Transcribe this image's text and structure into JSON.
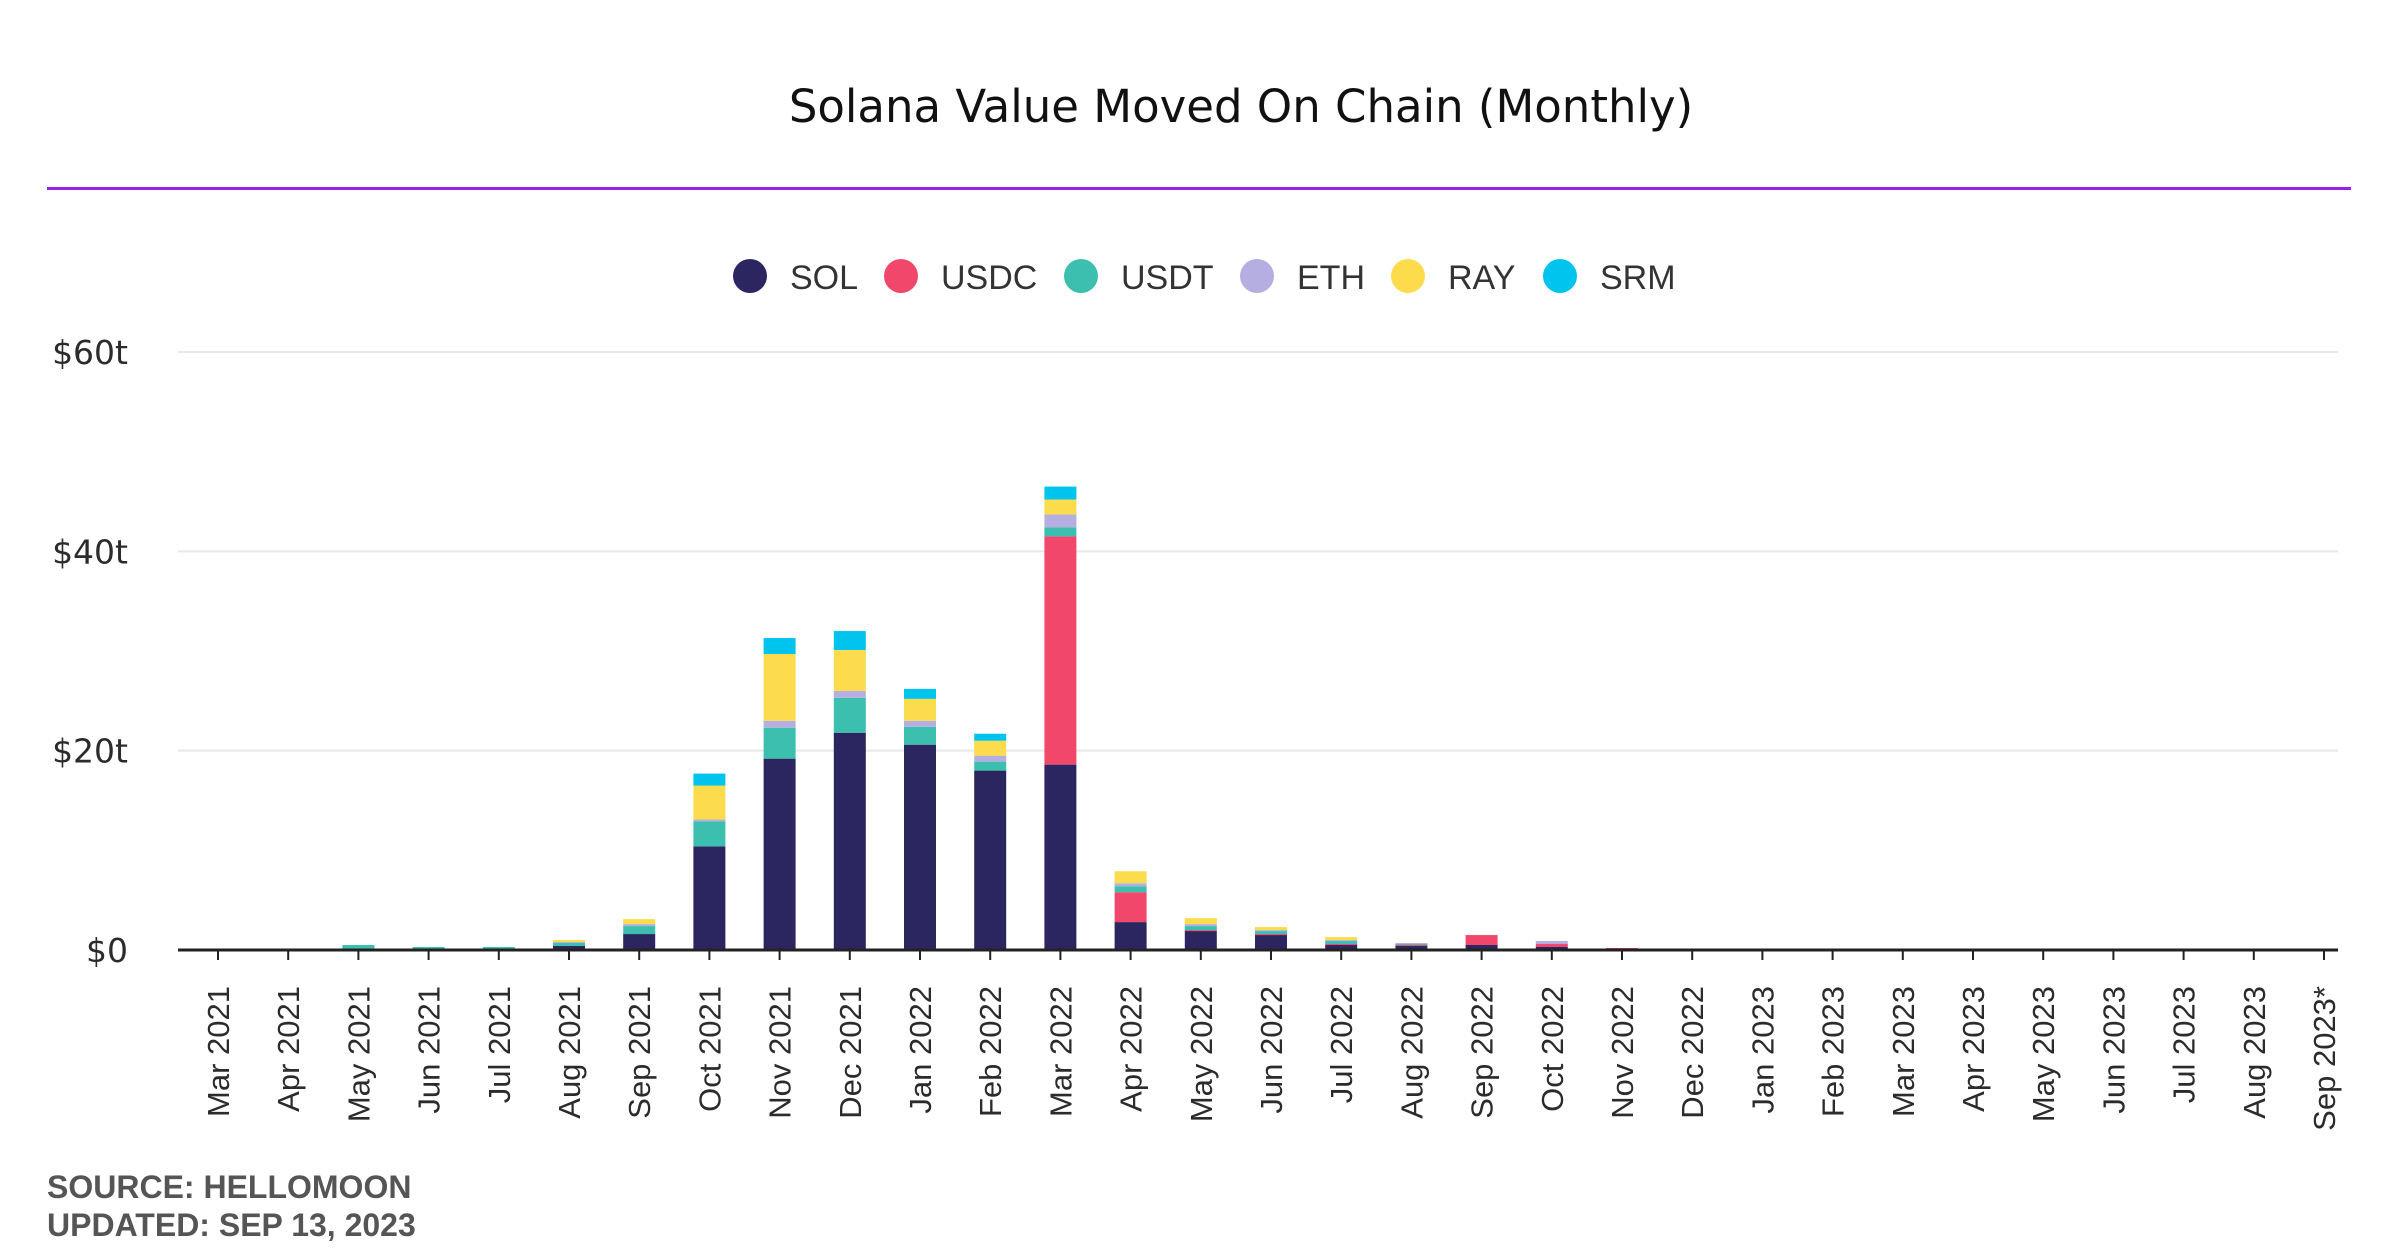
{
  "colors": {
    "accent_rule": "#9b1fe8",
    "axis": "#222222",
    "grid": "#e8e8e8"
  },
  "chart_data": {
    "type": "bar",
    "stacked": true,
    "title": "Solana Value Moved On Chain (Monthly)",
    "xlabel": "",
    "ylabel": "",
    "ylim": [
      0,
      60
    ],
    "yunit": "trillion USD",
    "yticks": [
      0,
      20,
      40,
      60
    ],
    "ytick_labels": [
      "$0",
      "$20t",
      "$40t",
      "$60t"
    ],
    "grid": true,
    "legend": "top-center",
    "categories": [
      "Mar 2021",
      "Apr 2021",
      "May 2021",
      "Jun 2021",
      "Jul 2021",
      "Aug 2021",
      "Sep 2021",
      "Oct 2021",
      "Nov 2021",
      "Dec 2021",
      "Jan 2022",
      "Feb 2022",
      "Mar 2022",
      "Apr 2022",
      "May 2022",
      "Jun 2022",
      "Jul 2022",
      "Aug 2022",
      "Sep 2022",
      "Oct 2022",
      "Nov 2022",
      "Dec 2022",
      "Jan 2023",
      "Feb 2023",
      "Mar 2023",
      "Apr 2023",
      "May 2023",
      "Jun 2023",
      "Jul 2023",
      "Aug 2023",
      "Sep 2023*"
    ],
    "series": [
      {
        "name": "SOL",
        "color": "#2b2560",
        "values": [
          0,
          0,
          0.1,
          0.1,
          0.1,
          0.4,
          1.6,
          10.4,
          19.2,
          21.8,
          20.6,
          18.0,
          18.6,
          2.8,
          1.9,
          1.5,
          0.5,
          0.4,
          0.5,
          0.3,
          0.1,
          0,
          0,
          0,
          0,
          0,
          0,
          0,
          0,
          0,
          0
        ]
      },
      {
        "name": "USDC",
        "color": "#f0476b",
        "values": [
          0,
          0,
          0,
          0,
          0,
          0,
          0,
          0,
          0,
          0,
          0,
          0,
          22.9,
          3.0,
          0.1,
          0.1,
          0.1,
          0.1,
          1.0,
          0.3,
          0.1,
          0,
          0,
          0,
          0,
          0,
          0,
          0,
          0,
          0,
          0
        ]
      },
      {
        "name": "USDT",
        "color": "#3cbfae",
        "values": [
          0,
          0,
          0.4,
          0.2,
          0.2,
          0.3,
          0.8,
          2.5,
          3.1,
          3.5,
          1.8,
          0.9,
          0.9,
          0.6,
          0.4,
          0.3,
          0.3,
          0.1,
          0,
          0,
          0,
          0,
          0,
          0,
          0,
          0,
          0,
          0,
          0,
          0,
          0
        ]
      },
      {
        "name": "ETH",
        "color": "#b5aee0",
        "values": [
          0,
          0,
          0,
          0,
          0,
          0.1,
          0.2,
          0.2,
          0.7,
          0.7,
          0.6,
          0.6,
          1.3,
          0.3,
          0.2,
          0.1,
          0.1,
          0.1,
          0,
          0.3,
          0,
          0,
          0,
          0,
          0,
          0,
          0,
          0,
          0,
          0,
          0
        ]
      },
      {
        "name": "RAY",
        "color": "#fcdc4d",
        "values": [
          0,
          0,
          0,
          0,
          0,
          0.2,
          0.5,
          3.4,
          6.7,
          4.1,
          2.2,
          1.5,
          1.5,
          1.2,
          0.6,
          0.3,
          0.3,
          0,
          0,
          0,
          0,
          0,
          0,
          0,
          0,
          0,
          0,
          0,
          0,
          0,
          0
        ]
      },
      {
        "name": "SRM",
        "color": "#00c4ed",
        "values": [
          0,
          0,
          0,
          0,
          0,
          0,
          0,
          1.2,
          1.6,
          1.9,
          1.0,
          0.7,
          1.3,
          0,
          0,
          0,
          0,
          0,
          0,
          0,
          0,
          0,
          0,
          0,
          0,
          0,
          0,
          0,
          0,
          0,
          0
        ]
      }
    ]
  },
  "footer": {
    "source": "SOURCE: HELLOMOON",
    "updated": "UPDATED: SEP 13, 2023"
  }
}
